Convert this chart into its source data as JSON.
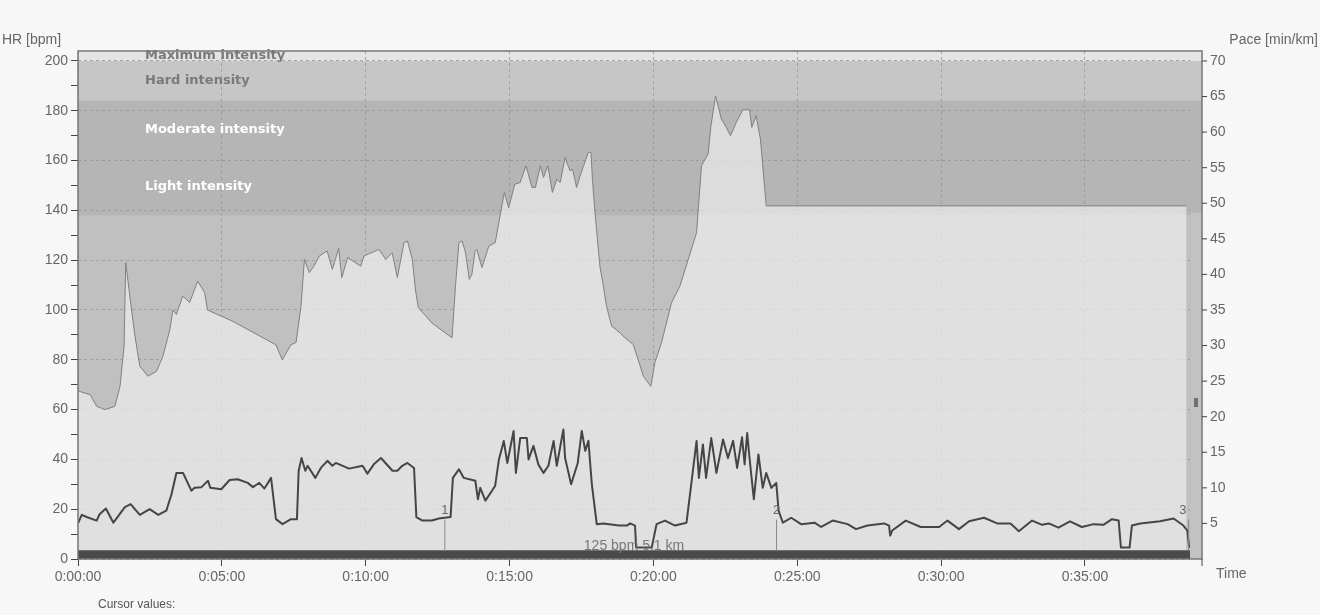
{
  "chart_data": {
    "type": "area",
    "xlabel": "Time",
    "ylabel": "HR [bpm]",
    "y2label": "Pace [min/km]",
    "xlim": [
      0,
      38.65
    ],
    "xticks": [
      {
        "value": 0,
        "label": "0:00:00"
      },
      {
        "value": 5,
        "label": "0:05:00"
      },
      {
        "value": 10,
        "label": "0:10:00"
      },
      {
        "value": 15,
        "label": "0:15:00"
      },
      {
        "value": 20,
        "label": "0:20:00"
      },
      {
        "value": 25,
        "label": "0:25:00"
      },
      {
        "value": 30,
        "label": "0:30:00"
      },
      {
        "value": 35,
        "label": "0:35:00"
      }
    ],
    "ylim": [
      0,
      204
    ],
    "yticks": [
      0,
      {
        "value": 10,
        "label": null
      },
      20,
      {
        "value": 30,
        "label": null
      },
      40,
      {
        "value": 50,
        "label": null
      },
      60,
      {
        "value": 70,
        "label": null
      },
      80,
      {
        "value": 90,
        "label": null
      },
      100,
      {
        "value": 110,
        "label": null
      },
      120,
      {
        "value": 130,
        "label": null
      },
      140,
      {
        "value": 150,
        "label": null
      },
      160,
      {
        "value": 170,
        "label": null
      },
      180,
      {
        "value": 190,
        "label": null
      },
      200
    ],
    "y2lim": [
      0,
      71.4
    ],
    "y2ticks": [
      5,
      10,
      15,
      20,
      25,
      30,
      35,
      40,
      45,
      50,
      55,
      60,
      65,
      70
    ],
    "grid": true,
    "marker": "none",
    "series": [
      {
        "type": "area",
        "color": "#808080",
        "x": [
          0,
          0.13,
          0.42,
          0.65,
          0.94,
          1.28,
          1.46,
          1.6,
          1.66,
          1.8,
          1.98,
          2.15,
          2.43,
          2.73,
          2.95,
          3.19,
          3.3,
          3.42,
          3.64,
          3.88,
          4.16,
          4.4,
          4.5,
          5.37,
          6.88,
          7.1,
          7.4,
          7.58,
          7.75,
          7.87,
          8.04,
          8.2,
          8.39,
          8.66,
          8.84,
          9.06,
          9.17,
          9.37,
          9.83,
          9.94,
          10.46,
          10.7,
          10.92,
          11.1,
          11.33,
          11.45,
          11.62,
          11.73,
          11.83,
          12.3,
          13.0,
          13.12,
          13.24,
          13.35,
          13.47,
          13.6,
          13.69,
          13.8,
          13.86,
          14.04,
          14.28,
          14.5,
          14.68,
          14.82,
          14.97,
          15.18,
          15.37,
          15.57,
          15.78,
          15.9,
          16.07,
          16.18,
          16.33,
          16.49,
          16.64,
          16.76,
          16.93,
          17.1,
          17.19,
          17.33,
          17.51,
          17.74,
          17.83,
          17.88,
          17.97,
          18.14,
          18.26,
          18.37,
          18.55,
          18.84,
          19.01,
          19.3,
          19.47,
          19.65,
          19.91,
          20.05,
          20.28,
          20.63,
          20.92,
          21.5,
          21.55,
          21.67,
          21.9,
          22.0,
          22.16,
          22.36,
          22.53,
          22.68,
          22.88,
          23.11,
          23.34,
          23.42,
          23.57,
          23.72,
          23.92,
          38.53
        ],
        "values": [
          67.6,
          67,
          66,
          61.3,
          60,
          61.3,
          69.3,
          85.4,
          119,
          105.6,
          89.5,
          77.4,
          73.4,
          75.4,
          81.4,
          92,
          100,
          98.2,
          105.6,
          103,
          111.6,
          107,
          100,
          95.5,
          86,
          80,
          86,
          87,
          101.5,
          120.3,
          115,
          117.6,
          121.7,
          123.7,
          116.3,
          124.7,
          113,
          121,
          117.6,
          121.7,
          124.3,
          120.3,
          123,
          113,
          127,
          127.7,
          120.3,
          108,
          100.9,
          94.8,
          88.8,
          109.6,
          127,
          127.7,
          123,
          112.3,
          114.3,
          123.7,
          124.3,
          117,
          125.7,
          127,
          138.4,
          147.2,
          141,
          150.5,
          151.2,
          157.9,
          149.2,
          149.2,
          157.9,
          153.2,
          157.9,
          147.2,
          152.5,
          151.2,
          161.2,
          155.9,
          156.5,
          149.2,
          155.9,
          163.3,
          163.3,
          152.5,
          139.1,
          117.6,
          109.6,
          101.5,
          93.5,
          90.8,
          88.8,
          86.1,
          80.1,
          73.4,
          69.3,
          78.8,
          86.8,
          102.9,
          109.6,
          131,
          139.1,
          157.9,
          162.6,
          174,
          186,
          176.7,
          173.3,
          170,
          175.3,
          180.4,
          180.4,
          173.3,
          178,
          168.6,
          141.8,
          141.8
        ]
      },
      {
        "type": "line",
        "axis": "y2",
        "color": "#454545",
        "x": [
          0,
          0.13,
          0.3,
          0.65,
          0.75,
          0.97,
          1.23,
          1.63,
          1.83,
          2.15,
          2.49,
          2.79,
          3.07,
          3.25,
          3.42,
          3.65,
          3.94,
          4.05,
          4.29,
          4.52,
          4.6,
          4.98,
          5.27,
          5.55,
          5.9,
          6.08,
          6.3,
          6.48,
          6.71,
          6.88,
          7.11,
          7.4,
          7.61,
          7.67,
          7.77,
          7.9,
          7.98,
          8.25,
          8.44,
          8.67,
          8.84,
          8.96,
          9.42,
          9.89,
          10.06,
          10.3,
          10.53,
          10.93,
          11.1,
          11.27,
          11.45,
          11.68,
          11.76,
          11.97,
          12.3,
          12.54,
          12.95,
          13.03,
          13.24,
          13.41,
          13.81,
          13.9,
          13.98,
          14.16,
          14.39,
          14.5,
          14.63,
          14.8,
          14.92,
          15.14,
          15.22,
          15.37,
          15.6,
          15.66,
          15.83,
          16.0,
          16.18,
          16.35,
          16.53,
          16.64,
          16.87,
          16.93,
          17.14,
          17.37,
          17.51,
          17.63,
          17.74,
          17.86,
          18.03,
          18.26,
          18.8,
          19.08,
          19.19,
          19.36,
          19.4,
          19.94,
          20.11,
          20.4,
          20.75,
          21.15,
          21.32,
          21.5,
          21.58,
          21.72,
          21.83,
          22.01,
          22.19,
          22.42,
          22.59,
          22.77,
          22.91,
          23.08,
          23.17,
          23.26,
          23.34,
          23.49,
          23.65,
          23.8,
          23.92,
          24.1,
          24.27,
          24.35,
          24.5,
          24.79,
          25.13,
          25.6,
          25.83,
          26.23,
          26.75,
          27.04,
          27.44,
          28.02,
          28.19,
          28.23,
          28.3,
          28.77,
          29.29,
          29.93,
          30.22,
          30.62,
          30.97,
          31.49,
          31.95,
          32.41,
          32.7,
          33.16,
          33.51,
          33.74,
          34.08,
          34.48,
          34.89,
          35.3,
          35.64,
          35.94,
          36.17,
          36.25,
          36.55,
          36.63,
          36.92,
          37.61,
          38.08,
          38.42,
          38.56,
          38.62
        ],
        "values": [
          5.0,
          6.2,
          5.9,
          5.4,
          6.3,
          7.1,
          5.1,
          7.3,
          7.7,
          6.2,
          7.0,
          6.2,
          6.8,
          9.1,
          12.1,
          12.1,
          9.6,
          10.0,
          10.1,
          11.0,
          10.0,
          9.8,
          11.1,
          11.2,
          10.7,
          10.1,
          10.7,
          9.9,
          11.4,
          5.6,
          4.9,
          5.6,
          5.6,
          12.4,
          14.2,
          12.4,
          13.1,
          11.4,
          12.8,
          13.8,
          13.1,
          13.5,
          12.7,
          13.1,
          12.0,
          13.4,
          14.2,
          12.4,
          12.4,
          13.1,
          13.5,
          12.8,
          5.9,
          5.4,
          5.4,
          5.7,
          5.9,
          11.4,
          12.6,
          11.4,
          11.0,
          8.4,
          10.0,
          8.2,
          9.6,
          10.3,
          14.0,
          16.6,
          13.5,
          18.0,
          12.1,
          17.0,
          17.0,
          14.0,
          15.9,
          13.3,
          12.1,
          13.1,
          16.6,
          13.1,
          18.2,
          14.2,
          10.5,
          13.5,
          18.0,
          15.2,
          16.6,
          10.5,
          4.9,
          5.0,
          4.7,
          4.7,
          5.0,
          4.7,
          1.6,
          1.6,
          4.9,
          5.4,
          4.7,
          5.1,
          10.7,
          16.6,
          11.4,
          16.1,
          11.4,
          17.0,
          12.1,
          16.8,
          14.2,
          16.6,
          12.8,
          17.1,
          13.3,
          17.7,
          14.2,
          8.4,
          14.7,
          10.0,
          12.1,
          10.0,
          10.7,
          6.8,
          5.1,
          5.8,
          4.9,
          5.1,
          4.5,
          5.4,
          4.9,
          4.2,
          4.7,
          5.0,
          4.7,
          3.3,
          4.0,
          5.4,
          4.5,
          4.5,
          5.4,
          4.2,
          5.3,
          5.8,
          5.0,
          5.0,
          3.9,
          5.4,
          4.8,
          5.0,
          4.4,
          5.3,
          4.5,
          4.9,
          4.8,
          5.6,
          5.4,
          1.6,
          1.6,
          4.7,
          5.0,
          5.3,
          5.7,
          4.7,
          4.0,
          1.6
        ]
      }
    ],
    "bands": [
      {
        "axis": "y",
        "from": 200,
        "to": 204,
        "label": "Maximum intensity",
        "color": "#e4e4e4"
      },
      {
        "axis": "y",
        "from": 184,
        "to": 200,
        "label": "Hard intensity",
        "color": "#c6c6c6"
      },
      {
        "axis": "y",
        "from": 161,
        "to": 184,
        "label": "Moderate intensity",
        "color": "#b5b5b5"
      },
      {
        "axis": "y",
        "from": 138,
        "to": 161,
        "label": "Light intensity",
        "color": "#b5b5b5"
      },
      {
        "axis": "y",
        "from": 0,
        "to": 3.5,
        "color": "#4a4a4a"
      }
    ],
    "annotations": [
      "125 bpm 5.1 km",
      "Cursor values:",
      {
        "text": "1",
        "x": 12.75,
        "y": 17
      },
      {
        "text": "2",
        "x": 24.28,
        "y": 17
      },
      {
        "text": "3",
        "x": 38.6,
        "y": 17
      }
    ]
  }
}
